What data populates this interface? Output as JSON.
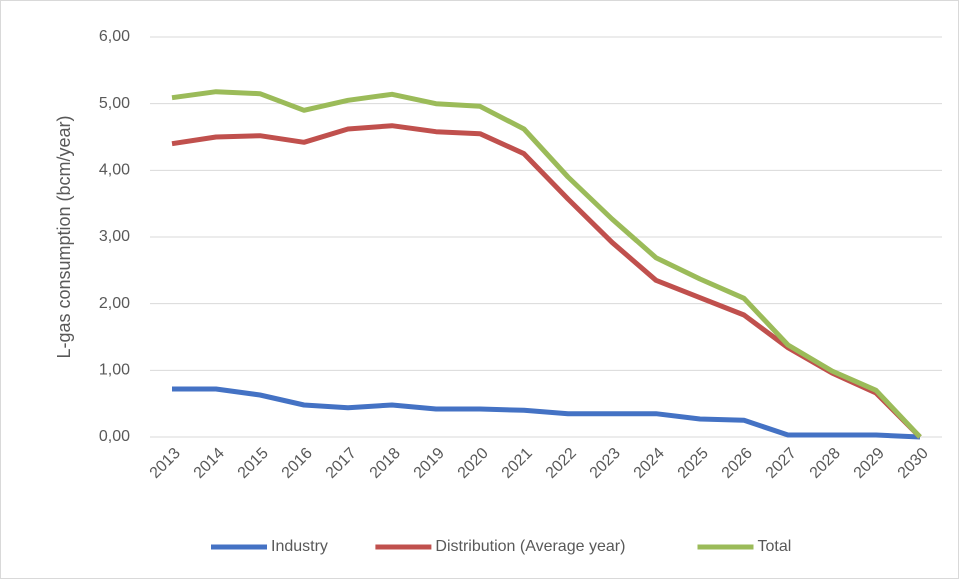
{
  "chart_data": {
    "type": "line",
    "y_label": "L-gas consumption (bcm/year)",
    "categories": [
      "2013",
      "2014",
      "2015",
      "2016",
      "2017",
      "2018",
      "2019",
      "2020",
      "2021",
      "2022",
      "2023",
      "2024",
      "2025",
      "2026",
      "2027",
      "2028",
      "2029",
      "2030"
    ],
    "series": [
      {
        "name": "Industry",
        "color": "#4472c4",
        "values": [
          0.72,
          0.72,
          0.63,
          0.48,
          0.44,
          0.48,
          0.42,
          0.42,
          0.4,
          0.35,
          0.35,
          0.35,
          0.27,
          0.25,
          0.03,
          0.03,
          0.03,
          0
        ]
      },
      {
        "name": "Distribution (Average year)",
        "color": "#c0504d",
        "values": [
          4.4,
          4.5,
          4.52,
          4.42,
          4.62,
          4.67,
          4.58,
          4.55,
          4.25,
          3.57,
          2.92,
          2.35,
          2.09,
          1.83,
          1.34,
          0.96,
          0.66,
          0
        ]
      },
      {
        "name": "Total",
        "color": "#9bbb59",
        "values": [
          5.09,
          5.18,
          5.15,
          4.9,
          5.05,
          5.14,
          5.0,
          4.96,
          4.62,
          3.9,
          3.27,
          2.69,
          2.37,
          2.08,
          1.38,
          0.99,
          0.7,
          0
        ]
      }
    ],
    "ylim": [
      0,
      6
    ],
    "yticks": [
      {
        "value": 0,
        "label": "0,00"
      },
      {
        "value": 1,
        "label": "1,00"
      },
      {
        "value": 2,
        "label": "2,00"
      },
      {
        "value": 3,
        "label": "3,00"
      },
      {
        "value": 4,
        "label": "4,00"
      },
      {
        "value": 5,
        "label": "5,00"
      },
      {
        "value": 6,
        "label": "6,00"
      }
    ],
    "grid": true,
    "legend": "bottom"
  }
}
